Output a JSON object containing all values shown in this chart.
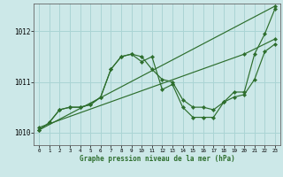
{
  "xlabel": "Graphe pression niveau de la mer (hPa)",
  "background_color": "#cce8e8",
  "grid_color": "#aad4d4",
  "line_color": "#2d6e2d",
  "ylim": [
    1009.75,
    1012.55
  ],
  "xlim": [
    -0.5,
    23.5
  ],
  "yticks": [
    1010,
    1011,
    1012
  ],
  "xticks": [
    0,
    1,
    2,
    3,
    4,
    5,
    6,
    7,
    8,
    9,
    10,
    11,
    12,
    13,
    14,
    15,
    16,
    17,
    18,
    19,
    20,
    21,
    22,
    23
  ],
  "series": [
    {
      "x": [
        0,
        23
      ],
      "y": [
        1010.05,
        1012.5
      ]
    },
    {
      "x": [
        0,
        20,
        23
      ],
      "y": [
        1010.1,
        1011.55,
        1011.85
      ]
    },
    {
      "x": [
        1,
        2,
        3,
        4,
        5,
        6,
        7,
        8,
        9,
        10,
        11,
        12,
        13,
        14,
        15,
        16,
        17,
        18,
        19,
        20,
        21,
        22,
        23
      ],
      "y": [
        1010.2,
        1010.45,
        1010.5,
        1010.5,
        1010.55,
        1010.7,
        1011.25,
        1011.5,
        1011.55,
        1011.5,
        1011.25,
        1011.05,
        1011.0,
        1010.65,
        1010.5,
        1010.5,
        1010.45,
        1010.6,
        1010.7,
        1010.75,
        1011.05,
        1011.6,
        1011.75
      ]
    },
    {
      "x": [
        0,
        1,
        2,
        3,
        4,
        5,
        6,
        7,
        8,
        9,
        10,
        11,
        12,
        13,
        14,
        15,
        16,
        17,
        18,
        19,
        20,
        21,
        22,
        23
      ],
      "y": [
        1010.05,
        1010.2,
        1010.45,
        1010.5,
        1010.5,
        1010.55,
        1010.7,
        1011.25,
        1011.5,
        1011.55,
        1011.4,
        1011.5,
        1010.85,
        1010.95,
        1010.5,
        1010.3,
        1010.3,
        1010.3,
        1010.6,
        1010.8,
        1010.8,
        1011.55,
        1011.95,
        1012.45
      ]
    }
  ]
}
